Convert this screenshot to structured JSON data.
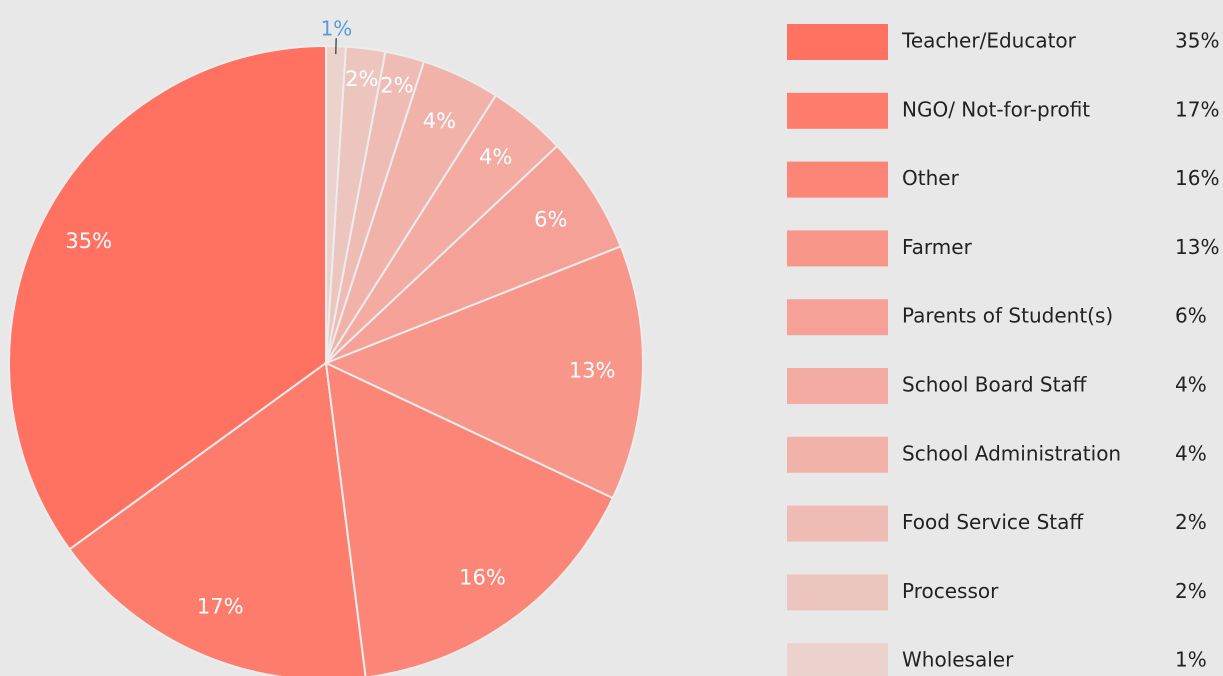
{
  "chart_data": {
    "type": "pie",
    "categories": [
      "Teacher/Educator",
      "NGO/ Not-for-profit",
      "Other",
      "Farmer",
      "Parents of Student(s)",
      "School Board Staff",
      "School Administration",
      "Food Service Staff",
      "Processor",
      "Wholesaler"
    ],
    "values": [
      35,
      17,
      16,
      13,
      6,
      4,
      4,
      2,
      2,
      1
    ],
    "value_labels": [
      "35%",
      "17%",
      "16%",
      "13%",
      "6%",
      "4%",
      "4%",
      "2%",
      "2%",
      "1%"
    ],
    "colors": [
      "#ff7262",
      "#fe7c6c",
      "#fb8677",
      "#f79689",
      "#f5a197",
      "#f3aba2",
      "#f1b2aa",
      "#efbcb5",
      "#edc5bf",
      "#ebd2cd"
    ],
    "legend": "right"
  }
}
